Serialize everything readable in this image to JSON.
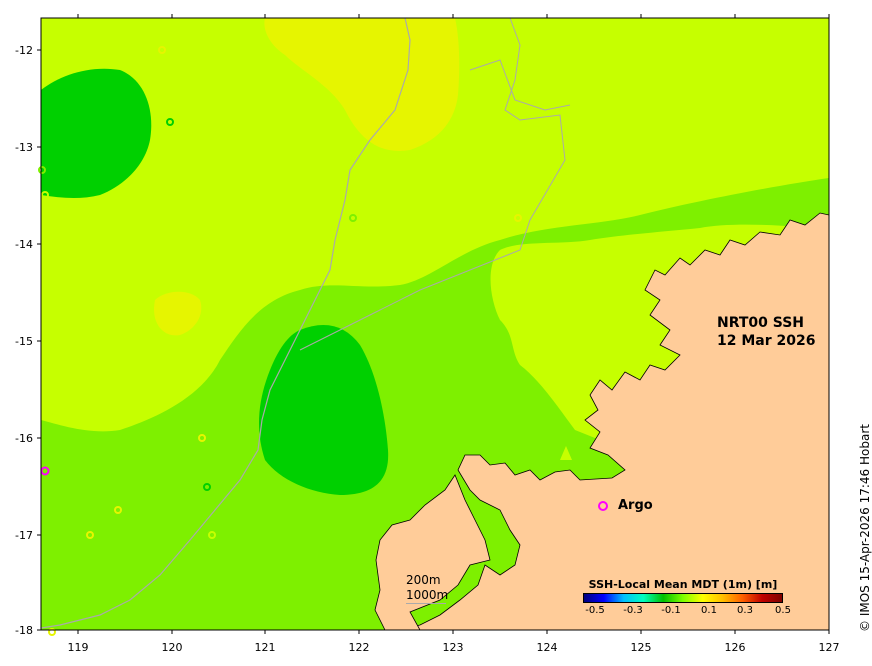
{
  "map": {
    "title_line1": "NRT00 SSH",
    "title_line2": "12 Mar 2026",
    "lon_ticks": [
      "119",
      "120",
      "121",
      "122",
      "123",
      "124",
      "125",
      "126",
      "127"
    ],
    "lat_ticks": [
      "-12",
      "-13",
      "-14",
      "-15",
      "-16",
      "-17",
      "-18"
    ],
    "lon_range": [
      118.6,
      127.0
    ],
    "lat_range": [
      -11.75,
      -18.0
    ],
    "colors": {
      "land": "#ffcc99",
      "ssh_high": "#e6f500",
      "ssh_mid_high": "#c6ff00",
      "ssh_mid": "#7ef000",
      "ssh_low": "#00d000",
      "bathymetry_line": "#aaaaaa",
      "argo_marker": "#ff00ff"
    }
  },
  "legend": {
    "argo_label": "Argo",
    "depth_200": "200m",
    "depth_1000": "1000m"
  },
  "colorbar": {
    "title": "SSH-Local Mean MDT (1m) [m]",
    "ticks": [
      "-0.5",
      "-0.3",
      "-0.1",
      "0.1",
      "0.3",
      "0.5"
    ]
  },
  "copyright": "© IMOS 15-Apr-2026 17:46 Hobart"
}
